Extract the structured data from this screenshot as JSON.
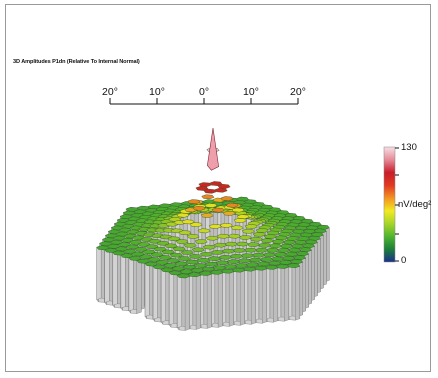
{
  "title": "3D Amplitudes P1dn (Relative To Internal Normal)",
  "eccentricity_scale": {
    "tick_labels": [
      "20°",
      "10°",
      "0°",
      "10°",
      "20°"
    ]
  },
  "colorbar": {
    "max_label": "130",
    "unit_label": "nV/deg²",
    "min_label": "0",
    "colors": [
      "#1a2f8a",
      "#1c7f3a",
      "#4fb52f",
      "#a6d42a",
      "#f2ea22",
      "#f39422",
      "#e03a22",
      "#c81e2a",
      "#e58a98",
      "#f7dfe4"
    ]
  },
  "chart_data": {
    "type": "heatmap",
    "title": "3D Amplitudes P1dn (Relative To Internal Normal)",
    "xlabel": "",
    "ylabel": "",
    "x_tick_labels": [
      "20°",
      "10°",
      "0°",
      "10°",
      "20°"
    ],
    "color_scale": {
      "min": 0,
      "max": 130,
      "unit": "nV/deg²"
    }
  }
}
